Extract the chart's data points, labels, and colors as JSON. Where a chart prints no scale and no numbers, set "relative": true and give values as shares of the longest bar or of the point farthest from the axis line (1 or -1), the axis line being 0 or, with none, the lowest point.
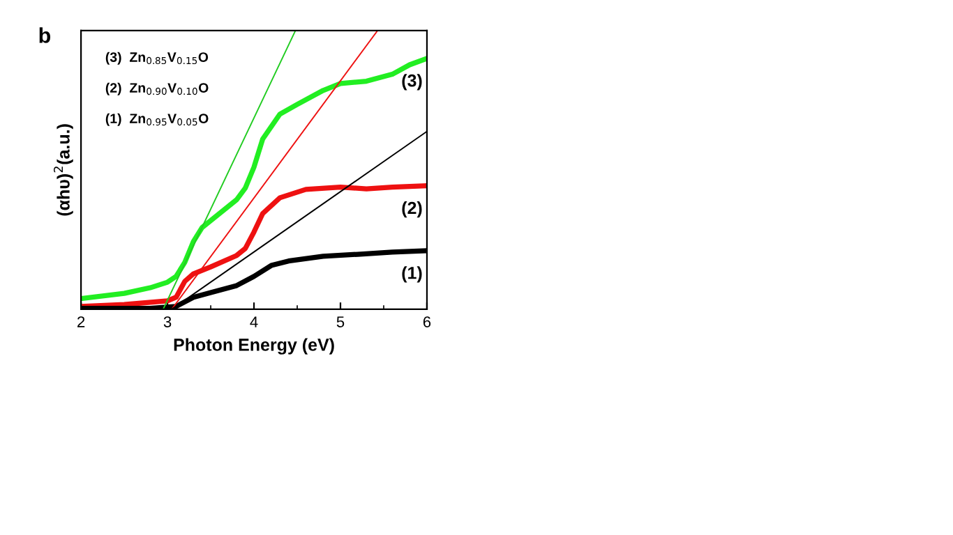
{
  "chart_data": {
    "type": "line",
    "relative": true,
    "xlabel": "Photon Energy (eV)",
    "ylabel": "(αhυ)$^{2}$(a.u.)",
    "xlim": [
      2,
      6
    ],
    "xticks": [
      2,
      3,
      4,
      5,
      6
    ],
    "legend": false,
    "grid": false,
    "marker": "none",
    "line_style": "solid",
    "annotations": [
      "b",
      "(3)  Zn$_{0.85}$V$_{0.15}$O",
      "(2)  Zn$_{0.90}$V$_{0.10}$O",
      "(1)  Zn$_{0.95}$V$_{0.05}$O"
    ],
    "series": [
      {
        "name": "(3)",
        "color": "#22ee22",
        "x": [
          2,
          2.5,
          2.8,
          3.0,
          3.1,
          3.2,
          3.3,
          3.4,
          3.6,
          3.8,
          3.9,
          4.0,
          4.1,
          4.3,
          4.5,
          4.8,
          5.0,
          5.3,
          5.6,
          5.8,
          6.0
        ],
        "values": [
          0.038,
          0.057,
          0.077,
          0.097,
          0.118,
          0.168,
          0.243,
          0.293,
          0.343,
          0.393,
          0.435,
          0.51,
          0.61,
          0.7,
          0.735,
          0.785,
          0.81,
          0.818,
          0.843,
          0.877,
          0.9
        ]
      },
      {
        "name": "(2)",
        "color": "#ee1111",
        "x": [
          2,
          2.5,
          3.0,
          3.1,
          3.2,
          3.3,
          3.5,
          3.8,
          3.9,
          4.0,
          4.1,
          4.3,
          4.6,
          5.0,
          5.3,
          5.6,
          6.0
        ],
        "values": [
          0.01,
          0.017,
          0.03,
          0.043,
          0.1,
          0.127,
          0.152,
          0.193,
          0.218,
          0.277,
          0.343,
          0.4,
          0.43,
          0.438,
          0.432,
          0.438,
          0.443
        ]
      },
      {
        "name": "(1)",
        "color": "#000000",
        "x": [
          2,
          2.8,
          3.1,
          3.3,
          3.5,
          3.8,
          4.0,
          4.2,
          4.4,
          4.8,
          5.2,
          5.6,
          6.0
        ],
        "values": [
          0.003,
          0.003,
          0.01,
          0.043,
          0.06,
          0.085,
          0.118,
          0.157,
          0.173,
          0.19,
          0.197,
          0.205,
          0.21
        ]
      },
      {
        "color": "#22cc22",
        "x": [
          2.95,
          4.48
        ],
        "values": [
          0,
          1
        ]
      },
      {
        "color": "#ee1111",
        "x": [
          3.05,
          5.43
        ],
        "values": [
          0,
          1
        ]
      },
      {
        "color": "#000000",
        "x": [
          3.05,
          6.0
        ],
        "values": [
          0,
          0.638
        ]
      }
    ]
  }
}
